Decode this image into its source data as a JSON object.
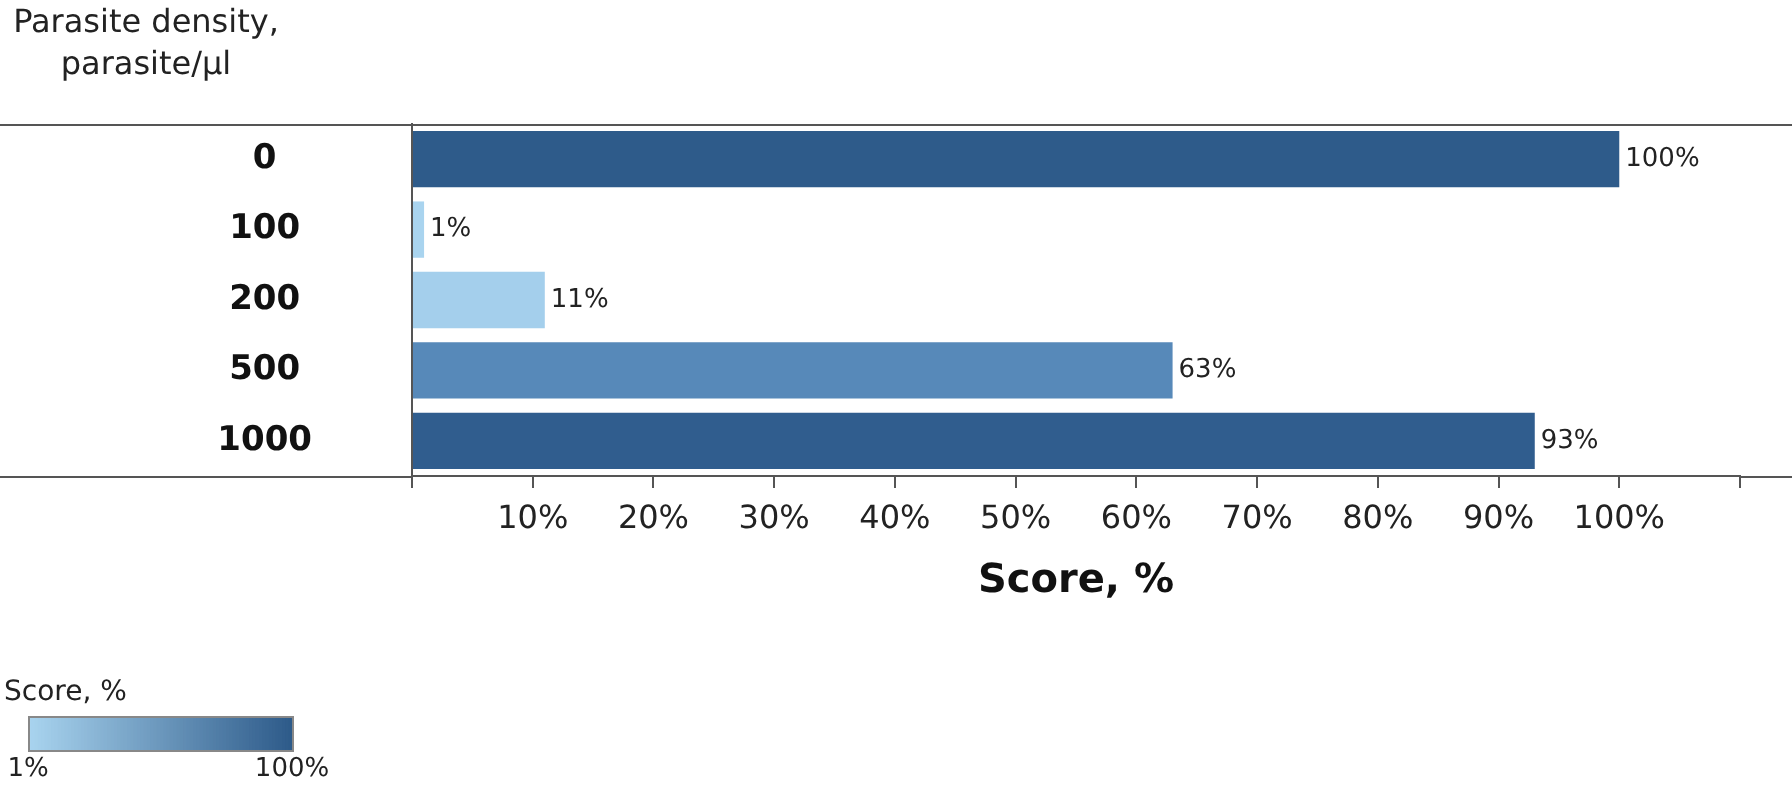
{
  "chart_data": {
    "type": "bar",
    "orientation": "horizontal",
    "ylabel": "Parasite density, parasite/µl",
    "xlabel": "Score, %",
    "clabel": "Score, %",
    "categories": [
      "0",
      "100",
      "200",
      "500",
      "1000"
    ],
    "values": [
      100,
      1,
      11,
      63,
      93
    ],
    "colors": [
      "#2e5b8a",
      "#a9d4ef",
      "#a4cfec",
      "#5789b9",
      "#305d8e"
    ],
    "value_labels": [
      "100%",
      "1%",
      "11%",
      "63%",
      "93%"
    ],
    "xlim": [
      0,
      110
    ],
    "xticks": [
      {
        "value": 0,
        "label": null
      },
      {
        "value": 10,
        "label": "10%"
      },
      {
        "value": 20,
        "label": "20%"
      },
      {
        "value": 30,
        "label": "30%"
      },
      {
        "value": 40,
        "label": "40%"
      },
      {
        "value": 50,
        "label": "50%"
      },
      {
        "value": 60,
        "label": "60%"
      },
      {
        "value": 70,
        "label": "70%"
      },
      {
        "value": 80,
        "label": "80%"
      },
      {
        "value": 90,
        "label": "90%"
      },
      {
        "value": 100,
        "label": "100%"
      },
      {
        "value": 110,
        "label": null
      }
    ],
    "clim": [
      1,
      100
    ],
    "cticks": [
      {
        "value": 1,
        "label": "1%"
      },
      {
        "value": 100,
        "label": "100%"
      }
    ],
    "grid": false,
    "legend": false
  }
}
